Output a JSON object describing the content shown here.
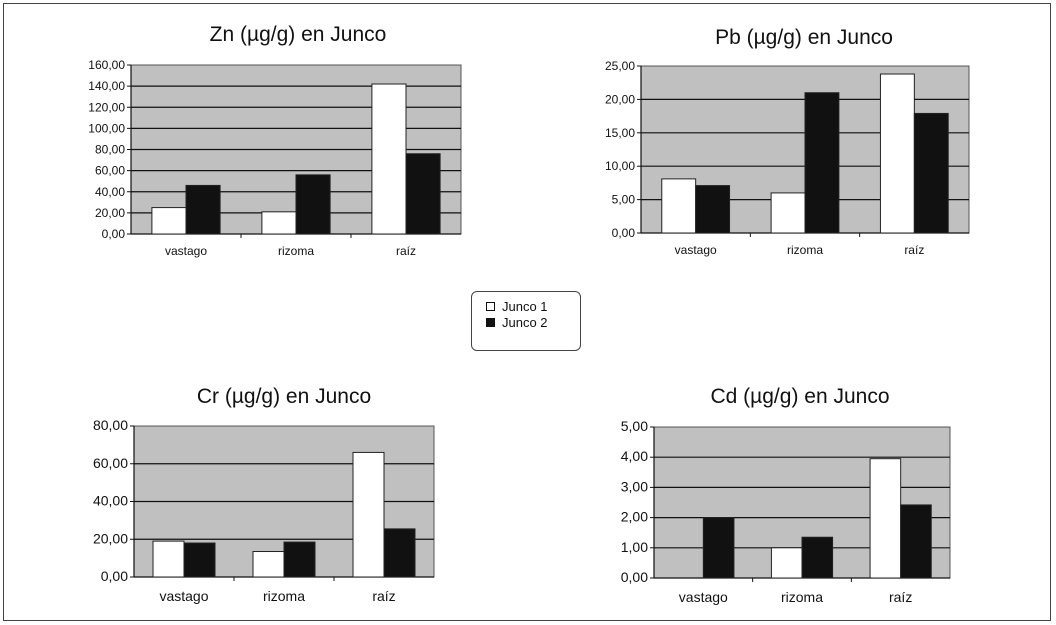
{
  "legend": [
    {
      "label": "Junco 1",
      "color": "#ffffff"
    },
    {
      "label": "Junco 2",
      "color": "#111111"
    }
  ],
  "chart_data": [
    {
      "type": "bar",
      "title": "Zn (µg/g) en Junco",
      "categories": [
        "vastago",
        "rizoma",
        "raíz"
      ],
      "series": [
        {
          "name": "Junco 1",
          "values": [
            25,
            21,
            142
          ]
        },
        {
          "name": "Junco 2",
          "values": [
            46,
            56,
            76
          ]
        }
      ],
      "ylim": [
        0,
        160
      ],
      "yticks": [
        "0,00",
        "20,00",
        "40,00",
        "60,00",
        "80,00",
        "100,00",
        "120,00",
        "140,00",
        "160,00"
      ],
      "grid": true
    },
    {
      "type": "bar",
      "title": "Pb (µg/g) en Junco",
      "categories": [
        "vastago",
        "rizoma",
        "raíz"
      ],
      "series": [
        {
          "name": "Junco 1",
          "values": [
            8.1,
            6.0,
            23.8
          ]
        },
        {
          "name": "Junco 2",
          "values": [
            7.1,
            21.0,
            17.9
          ]
        }
      ],
      "ylim": [
        0,
        25
      ],
      "yticks": [
        "0,00",
        "5,00",
        "10,00",
        "15,00",
        "20,00",
        "25,00"
      ],
      "grid": true
    },
    {
      "type": "bar",
      "title": "Cr (µg/g) en Junco",
      "categories": [
        "vastago",
        "rizoma",
        "raíz"
      ],
      "series": [
        {
          "name": "Junco 1",
          "values": [
            19,
            13.5,
            66
          ]
        },
        {
          "name": "Junco 2",
          "values": [
            18,
            18.5,
            25.5
          ]
        }
      ],
      "ylim": [
        0,
        80
      ],
      "yticks": [
        "0,00",
        "20,00",
        "40,00",
        "60,00",
        "80,00"
      ],
      "grid": true
    },
    {
      "type": "bar",
      "title": "Cd (µg/g) en Junco",
      "categories": [
        "vastago",
        "rizoma",
        "raíz"
      ],
      "series": [
        {
          "name": "Junco 1",
          "values": [
            0.0,
            1.0,
            3.95
          ]
        },
        {
          "name": "Junco 2",
          "values": [
            2.0,
            1.35,
            2.42
          ]
        }
      ],
      "ylim": [
        0,
        5
      ],
      "yticks": [
        "0,00",
        "1,00",
        "2,00",
        "3,00",
        "4,00",
        "5,00"
      ],
      "grid": true
    }
  ]
}
